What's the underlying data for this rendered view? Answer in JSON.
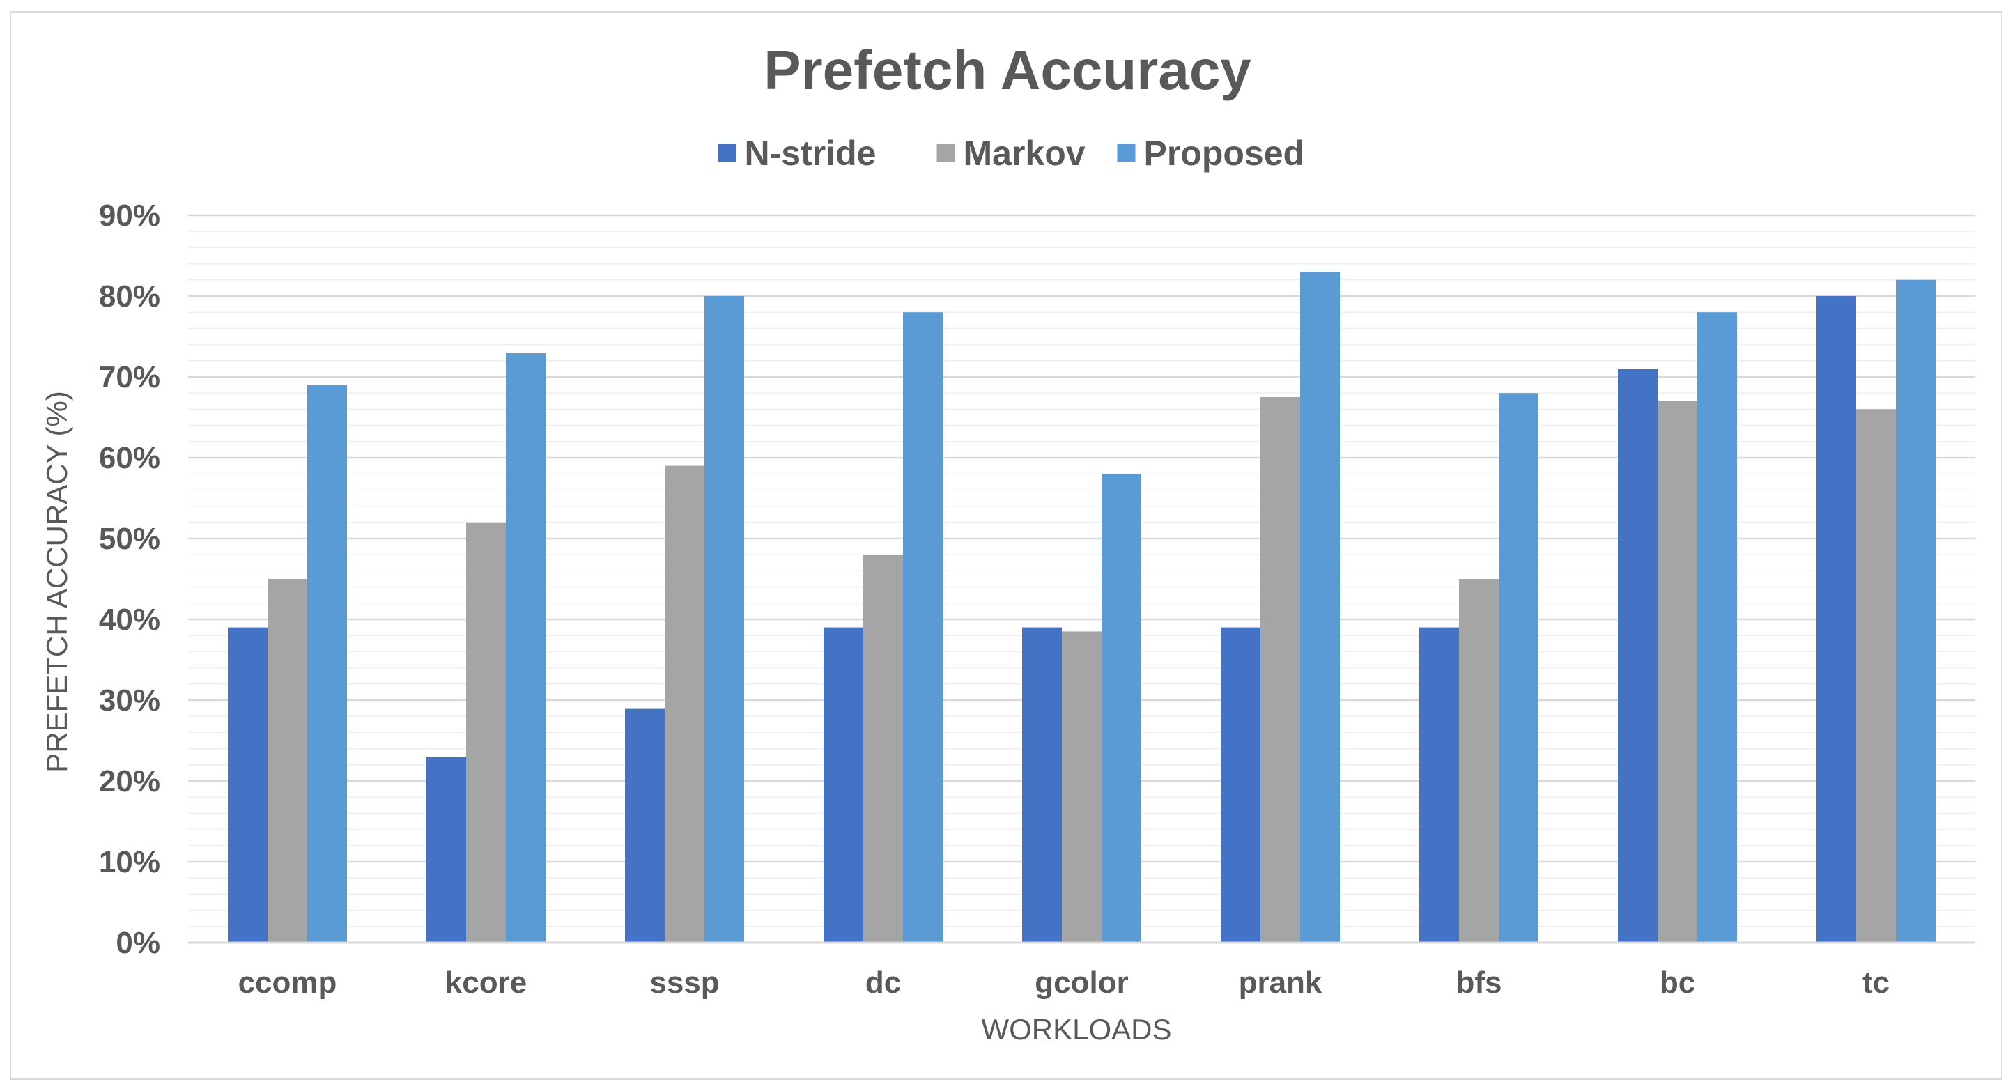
{
  "chart_data": {
    "type": "bar",
    "title": "Prefetch Accuracy",
    "xlabel": "WORKLOADS",
    "ylabel": "PREFETCH ACCURACY (%)",
    "categories": [
      "ccomp",
      "kcore",
      "sssp",
      "dc",
      "gcolor",
      "prank",
      "bfs",
      "bc",
      "tc"
    ],
    "series": [
      {
        "name": "N-stride",
        "color": "#4472c4",
        "values": [
          39,
          23,
          29,
          39,
          39,
          39,
          39,
          71,
          80
        ]
      },
      {
        "name": "Markov",
        "color": "#a5a5a5",
        "values": [
          45,
          52,
          59,
          48,
          38.5,
          67.5,
          45,
          67,
          66
        ]
      },
      {
        "name": "Proposed",
        "color": "#5b9bd5",
        "values": [
          69,
          73,
          80,
          78,
          58,
          83,
          68,
          78,
          82
        ]
      }
    ],
    "ylim": [
      0,
      90
    ],
    "ytick_labels": [
      "0%",
      "10%",
      "20%",
      "30%",
      "40%",
      "50%",
      "60%",
      "70%",
      "80%",
      "90%"
    ],
    "grid": true,
    "legend_position": "top"
  }
}
